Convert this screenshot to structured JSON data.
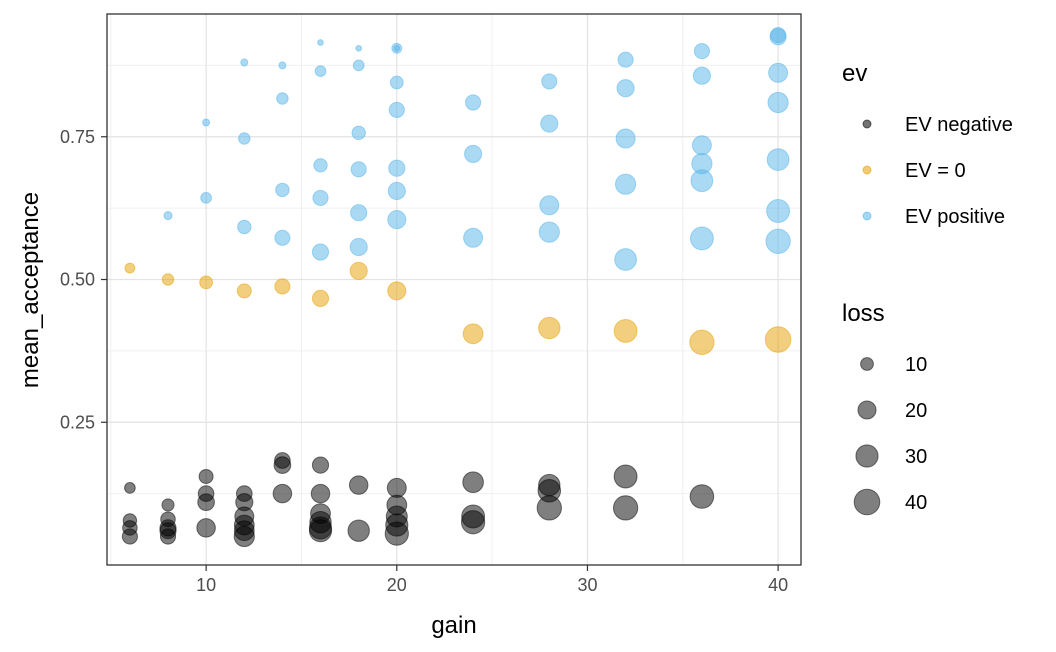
{
  "chart_data": {
    "type": "scatter",
    "xlabel": "gain",
    "ylabel": "mean_acceptance",
    "xlim": [
      4.8,
      41.2
    ],
    "ylim": [
      0.0,
      0.965
    ],
    "x_ticks": [
      10,
      20,
      30,
      40
    ],
    "y_ticks": [
      0.25,
      0.5,
      0.75
    ],
    "x_tick_labels": [
      "10",
      "20",
      "30",
      "40"
    ],
    "y_tick_labels": [
      "0.25",
      "0.50",
      "0.75"
    ],
    "grid": true,
    "legend_placement": "right",
    "color_legend": {
      "title": "ev",
      "entries": [
        {
          "label": "EV negative",
          "color": "#000000"
        },
        {
          "label": "EV = 0",
          "color": "#E69F00"
        },
        {
          "label": "EV positive",
          "color": "#56B4E9"
        }
      ]
    },
    "size_legend": {
      "title": "loss",
      "entries": [
        {
          "label": "10",
          "value": 10
        },
        {
          "label": "20",
          "value": 20
        },
        {
          "label": "30",
          "value": 30
        },
        {
          "label": "40",
          "value": 40
        }
      ]
    },
    "series": [
      {
        "name": "EV negative",
        "color": "#000000",
        "points": [
          {
            "x": 6,
            "y": 0.135,
            "loss": 7
          },
          {
            "x": 6,
            "y": 0.078,
            "loss": 11
          },
          {
            "x": 6,
            "y": 0.065,
            "loss": 13
          },
          {
            "x": 6,
            "y": 0.05,
            "loss": 14
          },
          {
            "x": 8,
            "y": 0.105,
            "loss": 9
          },
          {
            "x": 8,
            "y": 0.08,
            "loss": 13
          },
          {
            "x": 8,
            "y": 0.065,
            "loss": 16
          },
          {
            "x": 8,
            "y": 0.06,
            "loss": 16
          },
          {
            "x": 8,
            "y": 0.05,
            "loss": 14
          },
          {
            "x": 10,
            "y": 0.155,
            "loss": 12
          },
          {
            "x": 10,
            "y": 0.125,
            "loss": 15
          },
          {
            "x": 10,
            "y": 0.11,
            "loss": 17
          },
          {
            "x": 10,
            "y": 0.065,
            "loss": 21
          },
          {
            "x": 12,
            "y": 0.125,
            "loss": 15
          },
          {
            "x": 12,
            "y": 0.11,
            "loss": 18
          },
          {
            "x": 12,
            "y": 0.085,
            "loss": 22
          },
          {
            "x": 12,
            "y": 0.07,
            "loss": 24
          },
          {
            "x": 12,
            "y": 0.06,
            "loss": 24
          },
          {
            "x": 12,
            "y": 0.05,
            "loss": 25
          },
          {
            "x": 14,
            "y": 0.183,
            "loss": 15
          },
          {
            "x": 14,
            "y": 0.175,
            "loss": 17
          },
          {
            "x": 14,
            "y": 0.125,
            "loss": 21
          },
          {
            "x": 16,
            "y": 0.175,
            "loss": 16
          },
          {
            "x": 16,
            "y": 0.125,
            "loss": 21
          },
          {
            "x": 16,
            "y": 0.09,
            "loss": 24
          },
          {
            "x": 16,
            "y": 0.075,
            "loss": 28
          },
          {
            "x": 16,
            "y": 0.065,
            "loss": 30
          },
          {
            "x": 16,
            "y": 0.06,
            "loss": 30
          },
          {
            "x": 18,
            "y": 0.14,
            "loss": 21
          },
          {
            "x": 18,
            "y": 0.06,
            "loss": 28
          },
          {
            "x": 20,
            "y": 0.135,
            "loss": 22
          },
          {
            "x": 20,
            "y": 0.105,
            "loss": 24
          },
          {
            "x": 20,
            "y": 0.085,
            "loss": 27
          },
          {
            "x": 20,
            "y": 0.07,
            "loss": 30
          },
          {
            "x": 20,
            "y": 0.055,
            "loss": 33
          },
          {
            "x": 24,
            "y": 0.145,
            "loss": 26
          },
          {
            "x": 24,
            "y": 0.085,
            "loss": 32
          },
          {
            "x": 24,
            "y": 0.075,
            "loss": 33
          },
          {
            "x": 28,
            "y": 0.14,
            "loss": 28
          },
          {
            "x": 28,
            "y": 0.13,
            "loss": 31
          },
          {
            "x": 28,
            "y": 0.1,
            "loss": 36
          },
          {
            "x": 32,
            "y": 0.155,
            "loss": 32
          },
          {
            "x": 32,
            "y": 0.1,
            "loss": 36
          },
          {
            "x": 36,
            "y": 0.12,
            "loss": 34
          }
        ]
      },
      {
        "name": "EV = 0",
        "color": "#E69F00",
        "points": [
          {
            "x": 6,
            "y": 0.52,
            "loss": 6
          },
          {
            "x": 8,
            "y": 0.5,
            "loss": 8
          },
          {
            "x": 10,
            "y": 0.495,
            "loss": 10
          },
          {
            "x": 12,
            "y": 0.48,
            "loss": 12
          },
          {
            "x": 14,
            "y": 0.488,
            "loss": 14
          },
          {
            "x": 16,
            "y": 0.467,
            "loss": 16
          },
          {
            "x": 18,
            "y": 0.515,
            "loss": 18
          },
          {
            "x": 20,
            "y": 0.48,
            "loss": 20
          },
          {
            "x": 24,
            "y": 0.405,
            "loss": 24
          },
          {
            "x": 28,
            "y": 0.415,
            "loss": 28
          },
          {
            "x": 32,
            "y": 0.41,
            "loss": 32
          },
          {
            "x": 36,
            "y": 0.39,
            "loss": 36
          },
          {
            "x": 40,
            "y": 0.395,
            "loss": 40
          }
        ]
      },
      {
        "name": "EV positive",
        "color": "#56B4E9",
        "points": [
          {
            "x": 8,
            "y": 0.612,
            "loss": 4
          },
          {
            "x": 10,
            "y": 0.775,
            "loss": 3
          },
          {
            "x": 10,
            "y": 0.643,
            "loss": 7
          },
          {
            "x": 12,
            "y": 0.88,
            "loss": 3
          },
          {
            "x": 12,
            "y": 0.747,
            "loss": 8
          },
          {
            "x": 12,
            "y": 0.592,
            "loss": 11
          },
          {
            "x": 14,
            "y": 0.875,
            "loss": 3
          },
          {
            "x": 14,
            "y": 0.817,
            "loss": 8
          },
          {
            "x": 14,
            "y": 0.657,
            "loss": 11
          },
          {
            "x": 14,
            "y": 0.573,
            "loss": 14
          },
          {
            "x": 16,
            "y": 0.915,
            "loss": 2
          },
          {
            "x": 16,
            "y": 0.865,
            "loss": 7
          },
          {
            "x": 16,
            "y": 0.7,
            "loss": 11
          },
          {
            "x": 16,
            "y": 0.643,
            "loss": 14
          },
          {
            "x": 16,
            "y": 0.548,
            "loss": 16
          },
          {
            "x": 18,
            "y": 0.905,
            "loss": 2
          },
          {
            "x": 18,
            "y": 0.875,
            "loss": 7
          },
          {
            "x": 18,
            "y": 0.757,
            "loss": 11
          },
          {
            "x": 18,
            "y": 0.693,
            "loss": 14
          },
          {
            "x": 18,
            "y": 0.617,
            "loss": 16
          },
          {
            "x": 18,
            "y": 0.557,
            "loss": 18
          },
          {
            "x": 20,
            "y": 0.905,
            "loss": 2
          },
          {
            "x": 20,
            "y": 0.905,
            "loss": 6
          },
          {
            "x": 20,
            "y": 0.845,
            "loss": 10
          },
          {
            "x": 20,
            "y": 0.797,
            "loss": 14
          },
          {
            "x": 20,
            "y": 0.695,
            "loss": 16
          },
          {
            "x": 20,
            "y": 0.655,
            "loss": 18
          },
          {
            "x": 20,
            "y": 0.605,
            "loss": 20
          },
          {
            "x": 24,
            "y": 0.81,
            "loss": 14
          },
          {
            "x": 24,
            "y": 0.72,
            "loss": 18
          },
          {
            "x": 24,
            "y": 0.573,
            "loss": 22
          },
          {
            "x": 28,
            "y": 0.847,
            "loss": 14
          },
          {
            "x": 28,
            "y": 0.773,
            "loss": 18
          },
          {
            "x": 28,
            "y": 0.63,
            "loss": 22
          },
          {
            "x": 28,
            "y": 0.583,
            "loss": 25
          },
          {
            "x": 32,
            "y": 0.885,
            "loss": 14
          },
          {
            "x": 32,
            "y": 0.835,
            "loss": 18
          },
          {
            "x": 32,
            "y": 0.747,
            "loss": 22
          },
          {
            "x": 32,
            "y": 0.667,
            "loss": 25
          },
          {
            "x": 32,
            "y": 0.535,
            "loss": 29
          },
          {
            "x": 36,
            "y": 0.9,
            "loss": 14
          },
          {
            "x": 36,
            "y": 0.857,
            "loss": 18
          },
          {
            "x": 36,
            "y": 0.735,
            "loss": 22
          },
          {
            "x": 36,
            "y": 0.703,
            "loss": 25
          },
          {
            "x": 36,
            "y": 0.673,
            "loss": 29
          },
          {
            "x": 36,
            "y": 0.572,
            "loss": 32
          },
          {
            "x": 40,
            "y": 0.928,
            "loss": 14
          },
          {
            "x": 40,
            "y": 0.925,
            "loss": 16
          },
          {
            "x": 40,
            "y": 0.862,
            "loss": 22
          },
          {
            "x": 40,
            "y": 0.81,
            "loss": 25
          },
          {
            "x": 40,
            "y": 0.71,
            "loss": 29
          },
          {
            "x": 40,
            "y": 0.62,
            "loss": 32
          },
          {
            "x": 40,
            "y": 0.567,
            "loss": 36
          }
        ]
      }
    ]
  }
}
